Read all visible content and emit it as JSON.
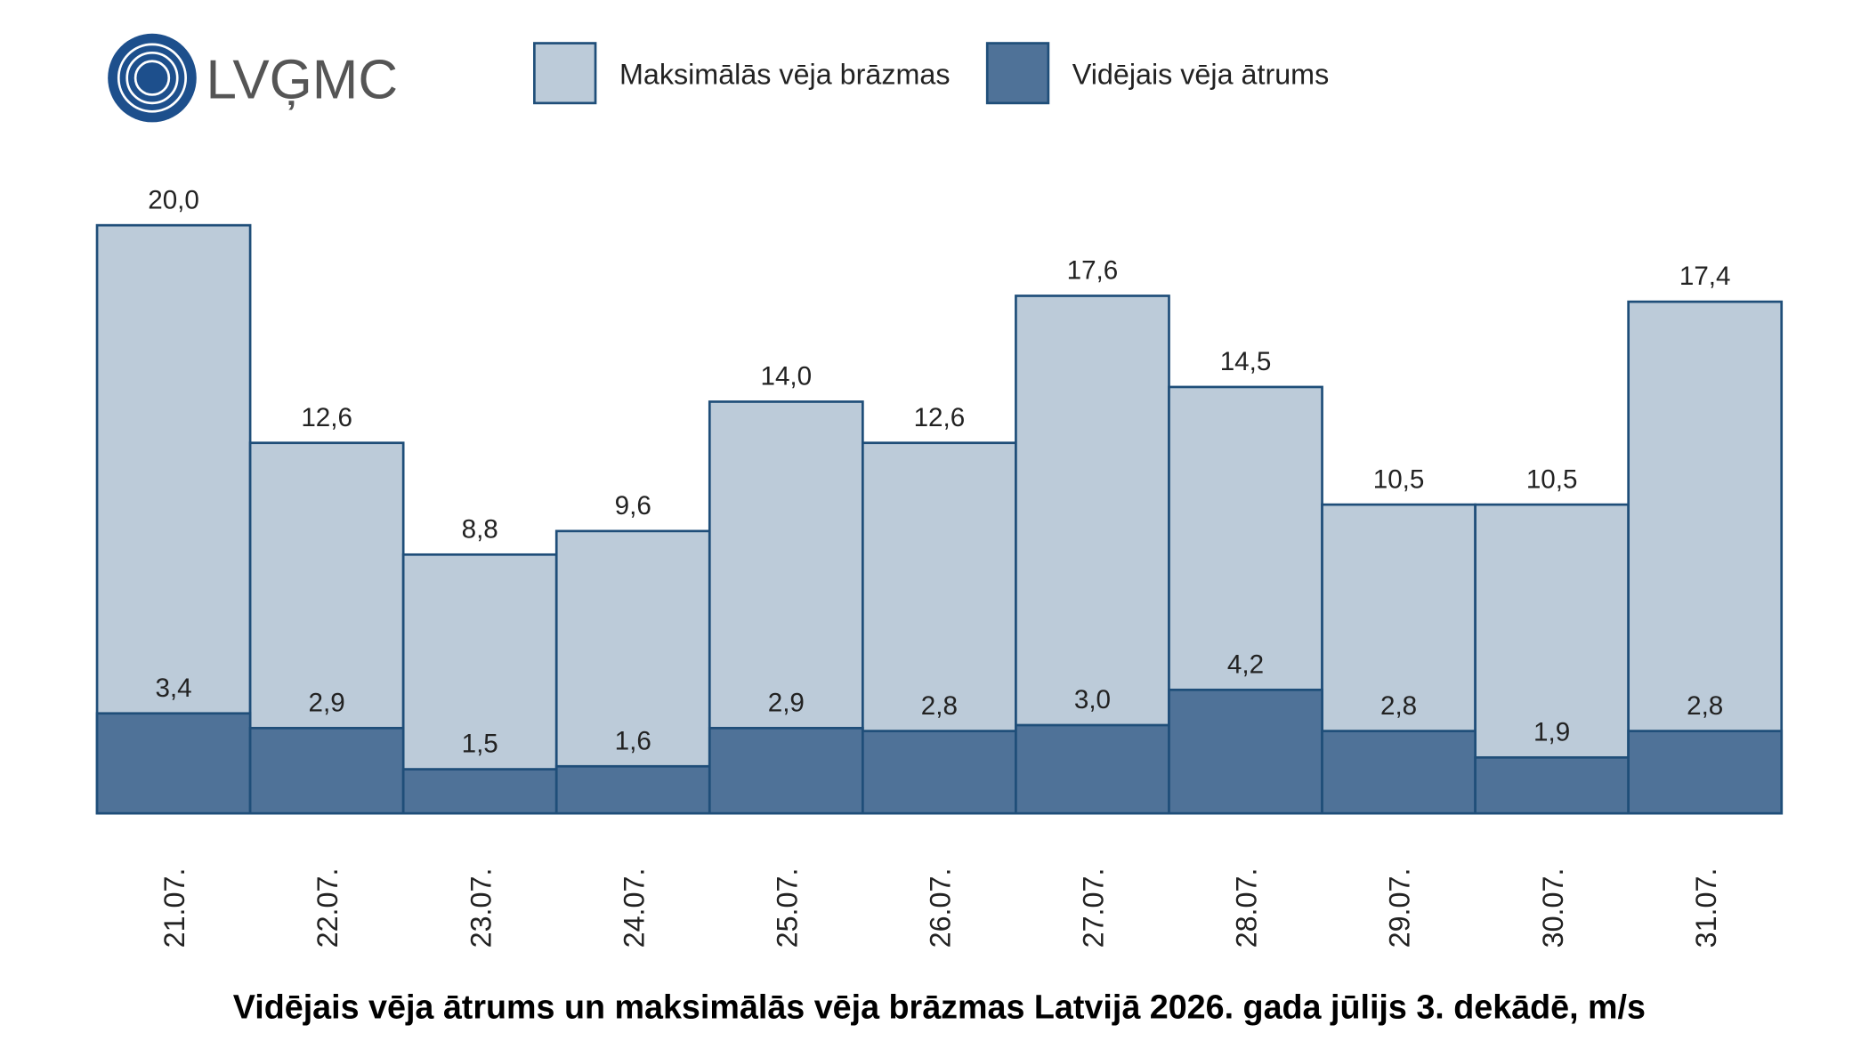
{
  "logo": "LVĢMC",
  "chart_data": {
    "type": "bar",
    "overlap": true,
    "title": "Vidējais vēja ātrums un maksimālās vēja brāzmas Latvijā 2026. gada jūlijs 3. dekādē, m/s",
    "categories": [
      "21.07.",
      "22.07.",
      "23.07.",
      "24.07.",
      "25.07.",
      "26.07.",
      "27.07.",
      "28.07.",
      "29.07.",
      "30.07.",
      "31.07."
    ],
    "series": [
      {
        "name": "Maksimālās vēja brāzmas",
        "color": "#bccbd9",
        "values": [
          20.0,
          12.6,
          8.8,
          9.6,
          14.0,
          12.6,
          17.6,
          14.5,
          10.5,
          10.5,
          17.4
        ],
        "value_labels": [
          "20,0",
          "12,6",
          "8,8",
          "9,6",
          "14,0",
          "12,6",
          "17,6",
          "14,5",
          "10,5",
          "10,5",
          "17,4"
        ]
      },
      {
        "name": "Vidējais vēja ātrums",
        "color": "#4f7298",
        "values": [
          3.4,
          2.9,
          1.5,
          1.6,
          2.9,
          2.8,
          3.0,
          4.2,
          2.8,
          1.9,
          2.8
        ],
        "value_labels": [
          "3,4",
          "2,9",
          "1,5",
          "1,6",
          "2,9",
          "2,8",
          "3,0",
          "4,2",
          "2,8",
          "1,9",
          "2,8"
        ]
      }
    ],
    "ylim": [
      0,
      20
    ],
    "grid": false
  }
}
